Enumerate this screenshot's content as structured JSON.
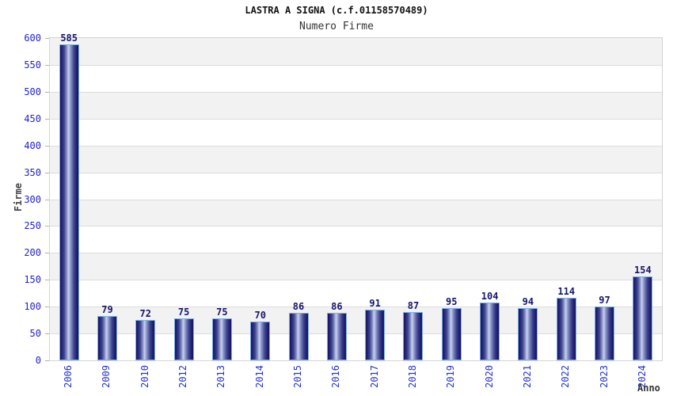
{
  "header": {
    "title": "LASTRA A SIGNA (c.f.01158570489)",
    "subtitle": "Numero Firme"
  },
  "chart_data": {
    "type": "bar",
    "title": "LASTRA A SIGNA (c.f.01158570489)",
    "subtitle": "Numero Firme",
    "xlabel": "Anno",
    "ylabel": "Firme",
    "categories": [
      "2006",
      "2009",
      "2010",
      "2012",
      "2013",
      "2014",
      "2015",
      "2016",
      "2017",
      "2018",
      "2019",
      "2020",
      "2021",
      "2022",
      "2023",
      "2024"
    ],
    "values": [
      585,
      79,
      72,
      75,
      75,
      70,
      86,
      86,
      91,
      87,
      95,
      104,
      94,
      114,
      97,
      154
    ],
    "ylim": [
      0,
      600
    ],
    "ytick_step": 50,
    "yticks": [
      "0",
      "50",
      "100",
      "150",
      "200",
      "250",
      "300",
      "350",
      "400",
      "450",
      "500",
      "550",
      "600"
    ],
    "grid": true,
    "legend": "none",
    "colors": {
      "band_light": "#ffffff",
      "band_dark": "#f2f2f2",
      "gridline": "#dcdcdc",
      "plot_border": "#d4d4d4",
      "bar_dark": "#14145c",
      "bar_light": "#c9d2ef",
      "bar_border": "#7db0e8",
      "tick_label": "#2222cc",
      "value_label": "#16166b",
      "axis_title": "#444444"
    }
  }
}
